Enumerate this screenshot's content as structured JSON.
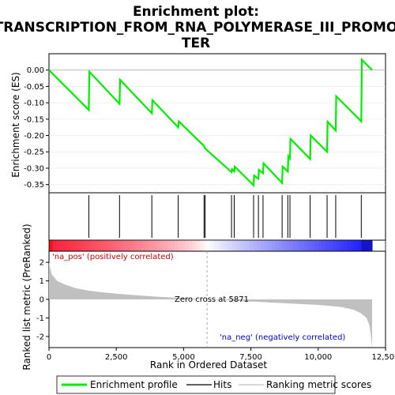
{
  "chart_data": {
    "type": "line",
    "title_lines": [
      "Enrichment plot:",
      "TRANSCRIPTION_FROM_RNA_POLYMERASE_III_PROMO",
      "TER"
    ],
    "es_panel": {
      "ylabel": "Enrichment score (ES)",
      "ylim": [
        -0.375,
        0.05
      ],
      "yticks": [
        0.0,
        -0.05,
        -0.1,
        -0.15,
        -0.2,
        -0.25,
        -0.3,
        -0.35
      ],
      "ytick_labels": [
        "0.00",
        "-0.05",
        "-0.10",
        "-0.15",
        "-0.20",
        "-0.25",
        "-0.30",
        "-0.35"
      ],
      "series_name": "Enrichment profile",
      "color": "#00ee00",
      "points": [
        [
          0,
          0.0
        ],
        [
          1480,
          -0.122
        ],
        [
          1500,
          -0.005
        ],
        [
          2620,
          -0.103
        ],
        [
          2640,
          -0.03
        ],
        [
          3820,
          -0.132
        ],
        [
          3840,
          -0.092
        ],
        [
          4800,
          -0.175
        ],
        [
          4820,
          -0.157
        ],
        [
          5760,
          -0.232
        ],
        [
          5800,
          -0.24
        ],
        [
          6780,
          -0.312
        ],
        [
          6800,
          -0.303
        ],
        [
          6880,
          -0.31
        ],
        [
          6900,
          -0.295
        ],
        [
          7600,
          -0.352
        ],
        [
          7620,
          -0.322
        ],
        [
          7780,
          -0.332
        ],
        [
          7800,
          -0.305
        ],
        [
          7950,
          -0.315
        ],
        [
          7970,
          -0.285
        ],
        [
          8660,
          -0.345
        ],
        [
          8680,
          -0.295
        ],
        [
          8870,
          -0.31
        ],
        [
          8890,
          -0.263
        ],
        [
          8950,
          -0.27
        ],
        [
          8970,
          -0.21
        ],
        [
          9700,
          -0.272
        ],
        [
          9720,
          -0.2
        ],
        [
          10330,
          -0.25
        ],
        [
          10350,
          -0.158
        ],
        [
          10650,
          -0.185
        ],
        [
          10670,
          -0.08
        ],
        [
          11600,
          -0.157
        ],
        [
          11620,
          0.032
        ],
        [
          12000,
          0.0
        ]
      ]
    },
    "hits": [
      1480,
      2620,
      3820,
      4800,
      5760,
      5800,
      6780,
      6880,
      7600,
      7780,
      7950,
      8660,
      8870,
      8950,
      9700,
      10330,
      10650,
      11600
    ],
    "ranked_panel": {
      "ylabel": "Ranked list metric (PreRanked)",
      "ylim": [
        -2.6,
        2.6
      ],
      "yticks": [
        2,
        1,
        0,
        -1,
        -2
      ],
      "fill_color": "#c0c0c0",
      "profile": [
        [
          0,
          2.0
        ],
        [
          100,
          1.35
        ],
        [
          300,
          1.0
        ],
        [
          600,
          0.8
        ],
        [
          1000,
          0.6
        ],
        [
          1500,
          0.47
        ],
        [
          2000,
          0.38
        ],
        [
          2600,
          0.3
        ],
        [
          3200,
          0.23
        ],
        [
          4000,
          0.15
        ],
        [
          4800,
          0.08
        ],
        [
          5871,
          0.0
        ],
        [
          7000,
          -0.08
        ],
        [
          8000,
          -0.15
        ],
        [
          9000,
          -0.22
        ],
        [
          10000,
          -0.3
        ],
        [
          10800,
          -0.4
        ],
        [
          11300,
          -0.55
        ],
        [
          11600,
          -0.75
        ],
        [
          11800,
          -1.0
        ],
        [
          11900,
          -1.4
        ],
        [
          11960,
          -2.0
        ],
        [
          12000,
          -2.6
        ]
      ],
      "zero_cross_label": "Zero cross at 5871",
      "zero_cross": 5871,
      "pos_label": "'na_pos' (positively correlated)",
      "neg_label": "'na_neg' (negatively correlated)"
    },
    "xaxis": {
      "label": "Rank in Ordered Dataset",
      "xlim": [
        0,
        12500
      ],
      "xticks": [
        0,
        2500,
        5000,
        7500,
        10000,
        12500
      ],
      "xtick_labels": [
        "0",
        "2,500",
        "5,000",
        "7,500",
        "10,000",
        "12,500"
      ],
      "n_genes": 12000
    },
    "legend": {
      "placement": "bottom",
      "entries": [
        {
          "label": "Enrichment profile",
          "color": "#00ee00"
        },
        {
          "label": "Hits",
          "color": "#000000"
        },
        {
          "label": "Ranking metric scores",
          "color": "#c0c0c0"
        }
      ]
    }
  }
}
